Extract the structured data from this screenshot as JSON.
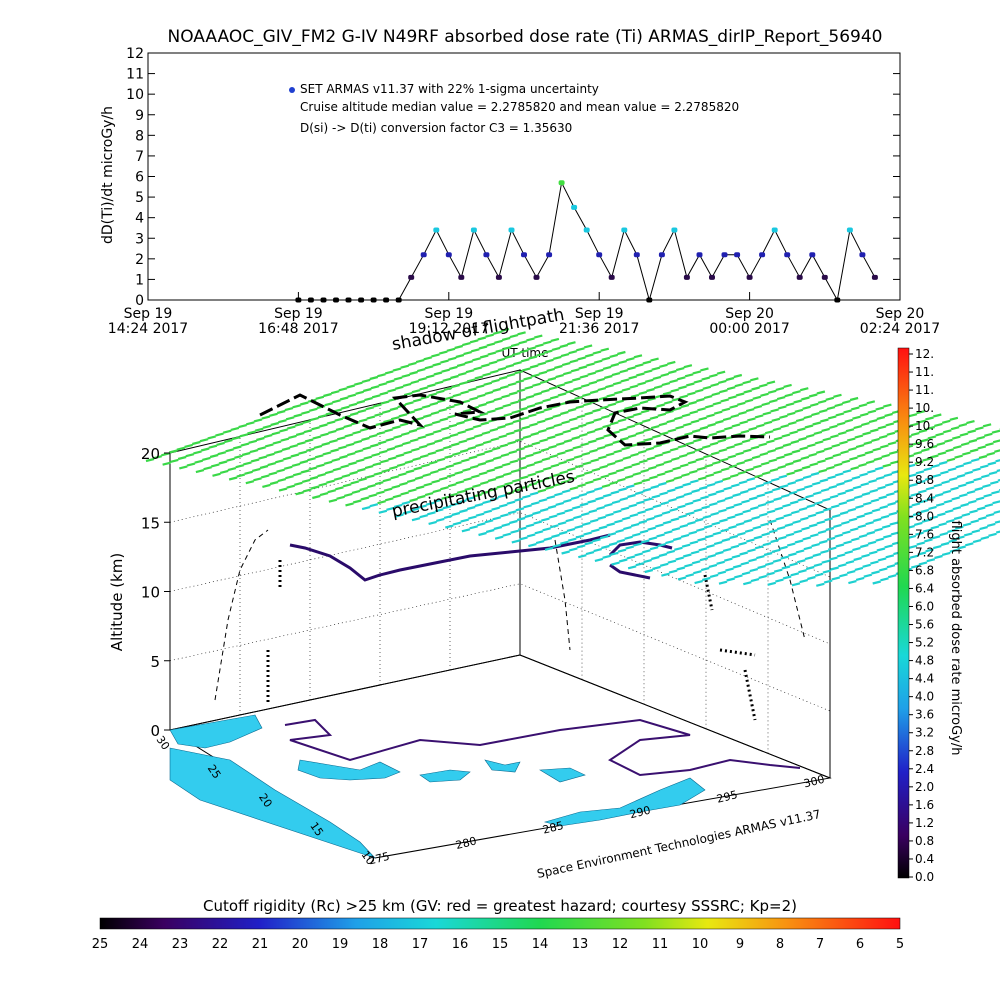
{
  "title": "NOAAAOC_GIV_FM2 G-IV    N49RF   absorbed dose rate (Ti) ARMAS_dirIP_Report_56940",
  "chart_data": [
    {
      "type": "line",
      "ylabel": "dD(Ti)/dt microGy/h",
      "xlabel": "UT time",
      "ylim": [
        0,
        12
      ],
      "yticks": [
        "0",
        "1",
        "2",
        "3",
        "4",
        "5",
        "6",
        "7",
        "8",
        "9",
        "10",
        "11",
        "12"
      ],
      "xticks": [
        {
          "l1": "Sep 19",
          "l2": "14:24 2017"
        },
        {
          "l1": "Sep 19",
          "l2": "16:48 2017"
        },
        {
          "l1": "Sep 19",
          "l2": "19:12 2017"
        },
        {
          "l1": "Sep 19",
          "l2": "21:36 2017"
        },
        {
          "l1": "Sep 20",
          "l2": "00:00 2017"
        },
        {
          "l1": "Sep 20",
          "l2": "02:24 2017"
        }
      ],
      "legend": [
        "SET ARMAS v11.37 with 22% 1-sigma uncertainty",
        "Cruise altitude median value = 2.2785820 and mean value = 2.2785820",
        "D(si) -> D(ti) conversion factor C3 = 1.35630"
      ],
      "grid": false,
      "series": [
        {
          "x": [
            "16:48",
            "17:00",
            "17:12",
            "17:24",
            "17:36",
            "17:48",
            "18:00",
            "18:12",
            "18:24",
            "18:36",
            "18:48",
            "19:00",
            "19:12",
            "19:24",
            "19:36",
            "19:48",
            "20:00",
            "20:12",
            "20:24",
            "20:36",
            "20:48",
            "21:00",
            "21:12",
            "21:24",
            "21:36",
            "21:48",
            "22:00",
            "22:12",
            "22:24",
            "22:36",
            "22:48",
            "23:00",
            "23:12",
            "23:24",
            "23:36",
            "23:48",
            "00:00",
            "00:12",
            "00:24",
            "00:36",
            "00:48",
            "01:00",
            "01:12",
            "01:24",
            "01:36",
            "01:48",
            "02:00"
          ],
          "values": [
            0,
            0,
            0,
            0,
            0,
            0,
            0,
            0,
            0,
            1.1,
            2.2,
            3.4,
            2.2,
            1.1,
            3.4,
            2.2,
            1.1,
            3.4,
            2.2,
            1.1,
            2.2,
            5.7,
            4.5,
            3.4,
            2.2,
            1.1,
            3.4,
            2.2,
            0,
            2.2,
            3.4,
            1.1,
            2.2,
            1.1,
            2.2,
            2.2,
            1.1,
            2.2,
            3.4,
            2.2,
            1.1,
            2.2,
            1.1,
            0,
            3.4,
            2.2,
            1.1
          ]
        }
      ]
    },
    {
      "type": "scatter",
      "ylabel": "Altitude (km)",
      "zticks": [
        "0",
        "5",
        "10",
        "15",
        "20"
      ],
      "lat_ticks": [
        "30",
        "25",
        "20",
        "15",
        "10"
      ],
      "lon_ticks": [
        "275",
        "280",
        "285",
        "290",
        "295",
        "300"
      ],
      "annotations": [
        "shadow of flightpath",
        "precipitating particles"
      ],
      "credit": "Space Environment Technologies ARMAS v11.37"
    }
  ],
  "colorbar_right": {
    "label": "flight absorbed dose rate microGy/h",
    "ticks": [
      "0.0",
      "0.4",
      "0.8",
      "1.2",
      "1.6",
      "2.0",
      "2.4",
      "2.8",
      "3.2",
      "3.6",
      "4.0",
      "4.4",
      "4.8",
      "5.2",
      "5.6",
      "6.0",
      "6.4",
      "6.8",
      "7.2",
      "7.6",
      "8.0",
      "8.4",
      "8.8",
      "9.2",
      "9.6",
      "10.",
      "10.",
      "11.",
      "11.",
      "12."
    ]
  },
  "colorbar_bottom": {
    "label": "Cutoff rigidity (Rc) >25 km (GV: red = greatest hazard; courtesy SSSRC; Kp=2)",
    "ticks": [
      "25",
      "24",
      "23",
      "22",
      "21",
      "20",
      "19",
      "18",
      "17",
      "16",
      "15",
      "14",
      "13",
      "12",
      "11",
      "10",
      "9",
      "8",
      "7",
      "6",
      "5"
    ]
  },
  "colors": {
    "dark": "#2a0b4a",
    "mid": "#2020b0",
    "cyan": "#19c8e0",
    "green": "#40dd40"
  }
}
